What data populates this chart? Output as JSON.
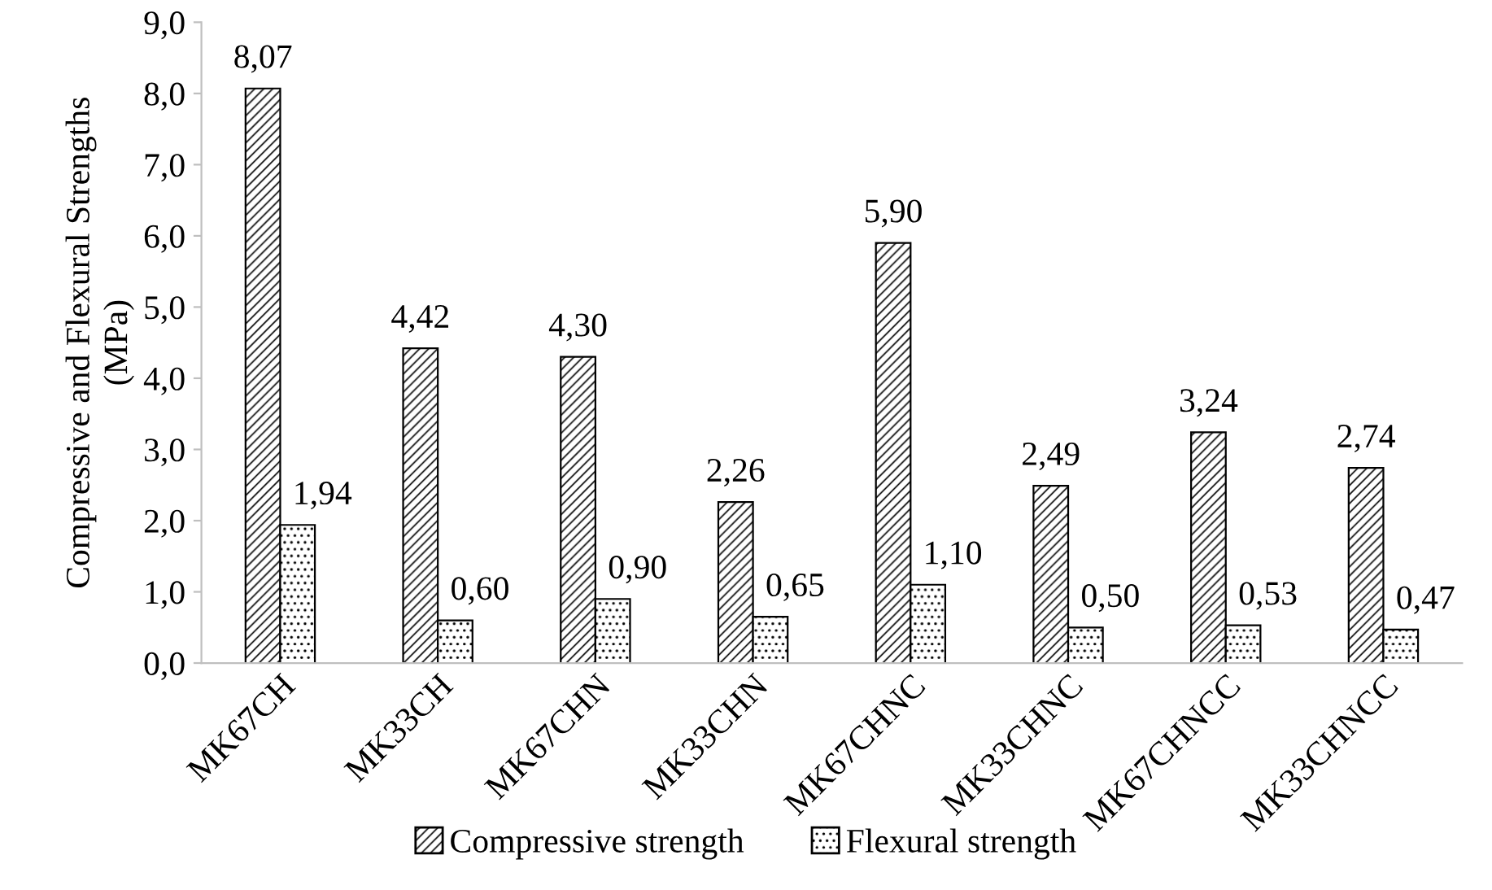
{
  "chart_data": {
    "type": "bar",
    "ylabel": "Compressive and Flexural Strengths (MPa)",
    "categories": [
      "MK67CH",
      "MK33CH",
      "MK67CHN",
      "MK33CHN",
      "MK67CHNC",
      "MK33CHNC",
      "MK67CHNCC",
      "MK33CHNCC"
    ],
    "series": [
      {
        "name": "Compressive strength",
        "color": "#000000",
        "values": [
          8.07,
          4.42,
          4.3,
          2.26,
          5.9,
          2.49,
          3.24,
          2.74
        ],
        "value_labels": [
          "8,07",
          "4,42",
          "4,30",
          "2,26",
          "5,90",
          "2,49",
          "3,24",
          "2,74"
        ]
      },
      {
        "name": "Flexural strength",
        "color": "#000000",
        "values": [
          1.94,
          0.6,
          0.9,
          0.65,
          1.1,
          0.5,
          0.53,
          0.47
        ],
        "value_labels": [
          "1,94",
          "0,60",
          "0,90",
          "0,65",
          "1,10",
          "0,50",
          "0,53",
          "0,47"
        ]
      }
    ],
    "ylim": [
      0,
      9
    ],
    "yticks": [
      {
        "value": 0,
        "label": "0,0"
      },
      {
        "value": 1,
        "label": "1,0"
      },
      {
        "value": 2,
        "label": "2,0"
      },
      {
        "value": 3,
        "label": "3,0"
      },
      {
        "value": 4,
        "label": "4,0"
      },
      {
        "value": 5,
        "label": "5,0"
      },
      {
        "value": 6,
        "label": "6,0"
      },
      {
        "value": 7,
        "label": "7,0"
      },
      {
        "value": 8,
        "label": "8,0"
      },
      {
        "value": 9,
        "label": "9,0"
      }
    ],
    "legend": "bottom"
  }
}
